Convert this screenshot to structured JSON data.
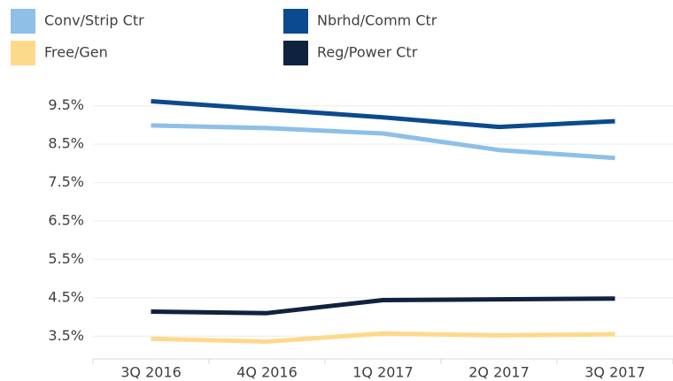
{
  "chart_data": {
    "type": "line",
    "categories": [
      "3Q 2016",
      "4Q 2016",
      "1Q 2017",
      "2Q 2017",
      "3Q 2017"
    ],
    "series": [
      {
        "name": "Conv/Strip Ctr",
        "color": "#8dbfe7",
        "values": [
          8.99,
          8.92,
          8.78,
          8.35,
          8.14
        ]
      },
      {
        "name": "Nbrhd/Comm Ctr",
        "color": "#0b4a8f",
        "values": [
          9.62,
          9.41,
          9.2,
          8.95,
          9.1
        ]
      },
      {
        "name": "Free/Gen",
        "color": "#fdd98a",
        "values": [
          3.43,
          3.36,
          3.57,
          3.52,
          3.55
        ]
      },
      {
        "name": "Reg/Power Ctr",
        "color": "#0f223f",
        "values": [
          4.14,
          4.1,
          4.44,
          4.46,
          4.48
        ]
      }
    ],
    "ylim": [
      3,
      10
    ],
    "yticks": [
      {
        "value": 3.5,
        "label": "3.5%"
      },
      {
        "value": 4.5,
        "label": "4.5%"
      },
      {
        "value": 5.5,
        "label": "5.5%"
      },
      {
        "value": 6.5,
        "label": "6.5%"
      },
      {
        "value": 7.5,
        "label": "7.5%"
      },
      {
        "value": 8.5,
        "label": "8.5%"
      },
      {
        "value": 9.5,
        "label": "9.5%"
      }
    ],
    "grid": true
  }
}
